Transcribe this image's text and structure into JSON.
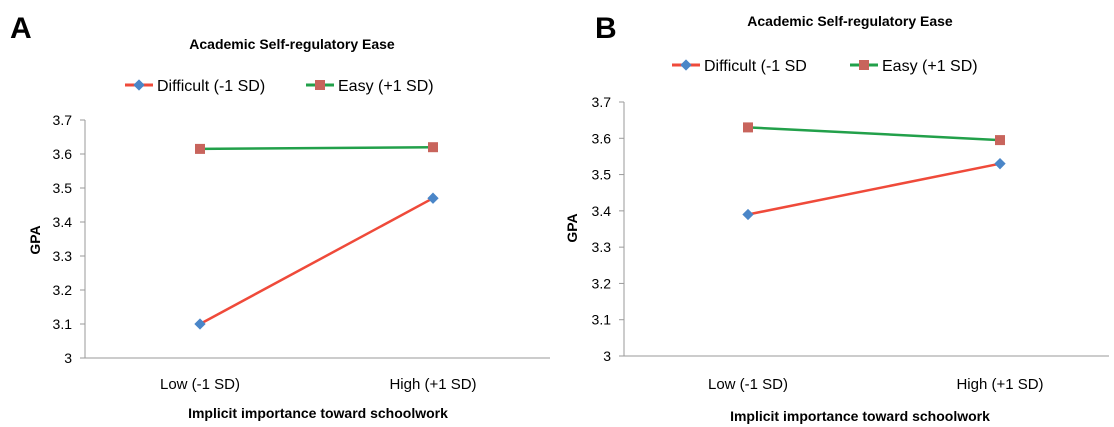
{
  "chart_data": [
    {
      "panel": "A",
      "type": "line",
      "title": "Academic Self-regulatory Ease",
      "xlabel": "Implicit importance toward schoolwork",
      "ylabel": "GPA",
      "categories": [
        "Low (-1 SD)",
        "High (+1 SD)"
      ],
      "ylim": [
        3,
        3.7
      ],
      "yticks": [
        "3",
        "3.1",
        "3.2",
        "3.3",
        "3.4",
        "3.5",
        "3.6",
        "3.7"
      ],
      "legend_position": "top",
      "grid": false,
      "series": [
        {
          "name": "Difficult (-1 SD)",
          "values": [
            3.1,
            3.47
          ],
          "line_color": "#ef4a3a",
          "marker": "diamond",
          "marker_color": "#4a86c8"
        },
        {
          "name": "Easy (+1 SD)",
          "values": [
            3.615,
            3.62
          ],
          "line_color": "#22a04a",
          "marker": "square",
          "marker_color": "#c8645c"
        }
      ]
    },
    {
      "panel": "B",
      "type": "line",
      "title": "Academic Self-regulatory Ease",
      "xlabel": "Implicit importance toward schoolwork",
      "ylabel": "GPA",
      "categories": [
        "Low (-1 SD)",
        "High (+1 SD)"
      ],
      "ylim": [
        3,
        3.7
      ],
      "yticks": [
        "3",
        "3.1",
        "3.2",
        "3.3",
        "3.4",
        "3.5",
        "3.6",
        "3.7"
      ],
      "legend_position": "top",
      "grid": false,
      "series": [
        {
          "name": "Difficult (-1 SD",
          "values": [
            3.39,
            3.53
          ],
          "line_color": "#ef4a3a",
          "marker": "diamond",
          "marker_color": "#4a86c8"
        },
        {
          "name": "Easy (+1 SD)",
          "values": [
            3.63,
            3.595
          ],
          "line_color": "#22a04a",
          "marker": "square",
          "marker_color": "#c8645c"
        }
      ]
    }
  ]
}
